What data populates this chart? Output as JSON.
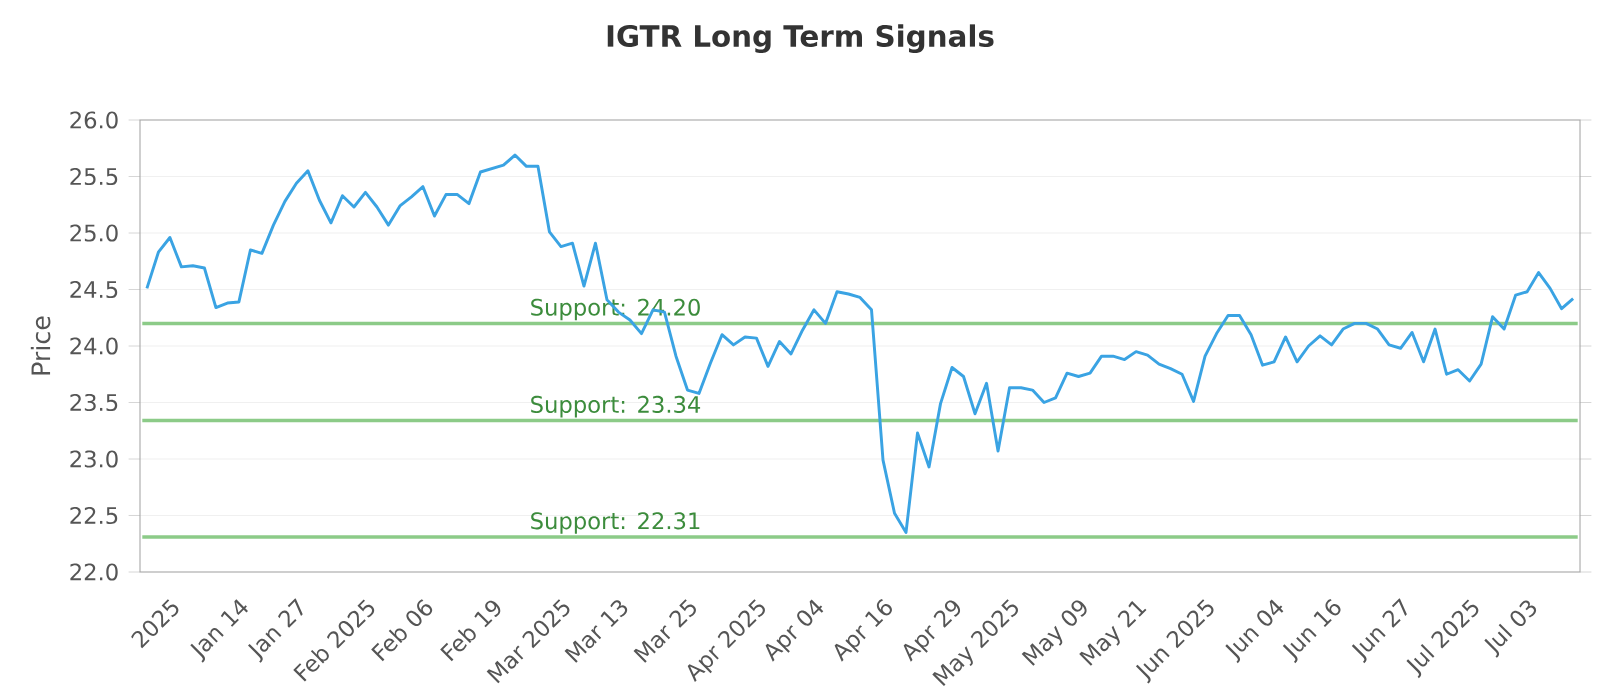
{
  "chart_data": {
    "type": "line",
    "title": "IGTR Long Term Signals",
    "ylabel": "Price",
    "categories": [
      null,
      null,
      "2025",
      null,
      null,
      null,
      null,
      null,
      "Jan 14",
      null,
      null,
      null,
      null,
      "Jan 27",
      null,
      null,
      null,
      null,
      null,
      "Feb 2025",
      null,
      null,
      null,
      null,
      "Feb 06",
      null,
      null,
      null,
      null,
      null,
      "Feb 19",
      null,
      null,
      null,
      null,
      null,
      "Mar 2025",
      null,
      null,
      null,
      null,
      "Mar 13",
      null,
      null,
      null,
      null,
      null,
      "Mar 25",
      null,
      null,
      null,
      null,
      null,
      "Apr 2025",
      null,
      null,
      null,
      null,
      "Apr 04",
      null,
      null,
      null,
      null,
      null,
      "Apr 16",
      null,
      null,
      null,
      null,
      null,
      "Apr 29",
      null,
      null,
      null,
      null,
      "May 2025",
      null,
      null,
      null,
      null,
      null,
      "May 09",
      null,
      null,
      null,
      null,
      "May 21",
      null,
      null,
      null,
      null,
      null,
      "Jun 2025",
      null,
      null,
      null,
      null,
      null,
      "Jun 04",
      null,
      null,
      null,
      null,
      "Jun 16",
      null,
      null,
      null,
      null,
      null,
      "Jun 27",
      null,
      null,
      null,
      null,
      null,
      "Jul 2025",
      null,
      null,
      null,
      null,
      "Jul 03",
      null,
      null,
      null,
      null
    ],
    "series": [
      {
        "color": "#3aa3e3",
        "values": [
          24.51,
          24.83,
          24.96,
          24.7,
          24.71,
          24.69,
          24.34,
          24.38,
          24.39,
          24.85,
          24.82,
          25.07,
          25.28,
          25.44,
          25.55,
          25.29,
          25.09,
          25.33,
          25.23,
          25.36,
          25.23,
          25.07,
          25.24,
          25.32,
          25.41,
          25.15,
          25.34,
          25.34,
          25.26,
          25.54,
          25.57,
          25.6,
          25.69,
          25.59,
          25.59,
          25.01,
          24.88,
          24.91,
          24.53,
          24.91,
          24.41,
          24.3,
          24.23,
          24.11,
          24.32,
          24.3,
          23.91,
          23.61,
          23.58,
          23.85,
          24.1,
          24.01,
          24.08,
          24.07,
          23.82,
          24.04,
          23.93,
          24.14,
          24.32,
          24.2,
          24.48,
          24.46,
          24.43,
          24.32,
          22.99,
          22.52,
          22.35,
          23.23,
          22.93,
          23.49,
          23.81,
          23.73,
          23.4,
          23.67,
          23.07,
          23.63,
          23.63,
          23.61,
          23.5,
          23.54,
          23.76,
          23.73,
          23.76,
          23.91,
          23.91,
          23.88,
          23.95,
          23.92,
          23.84,
          23.8,
          23.75,
          23.51,
          23.91,
          24.11,
          24.27,
          24.27,
          24.1,
          23.83,
          23.86,
          24.08,
          23.86,
          24.0,
          24.09,
          24.01,
          24.15,
          24.2,
          24.2,
          24.15,
          24.01,
          23.98,
          24.12,
          23.86,
          24.15,
          23.75,
          23.79,
          23.69,
          23.84,
          24.26,
          24.15,
          24.45,
          24.48,
          24.65,
          24.51,
          24.33,
          24.42
        ]
      }
    ],
    "ylim": [
      22,
      26
    ],
    "yticks": [
      {
        "value": 22,
        "label": "22.0"
      },
      {
        "value": 22.5,
        "label": "22.5"
      },
      {
        "value": 23,
        "label": "23.0"
      },
      {
        "value": 23.5,
        "label": "23.5"
      },
      {
        "value": 24,
        "label": "24.0"
      },
      {
        "value": 24.5,
        "label": "24.5"
      },
      {
        "value": 25,
        "label": "25.0"
      },
      {
        "value": 25.5,
        "label": "25.5"
      },
      {
        "value": 26,
        "label": "26.0"
      }
    ],
    "ref_lines": [
      {
        "axis": "y",
        "value": 24.2,
        "label": "Support: 24.20",
        "color": "#8ccb88"
      },
      {
        "axis": "y",
        "value": 23.34,
        "label": "Support: 23.34",
        "color": "#8ccb88"
      },
      {
        "axis": "y",
        "value": 22.31,
        "label": "Support: 22.31",
        "color": "#8ccb88"
      }
    ],
    "grid": "y",
    "marker": "none",
    "line_style": "solid"
  }
}
